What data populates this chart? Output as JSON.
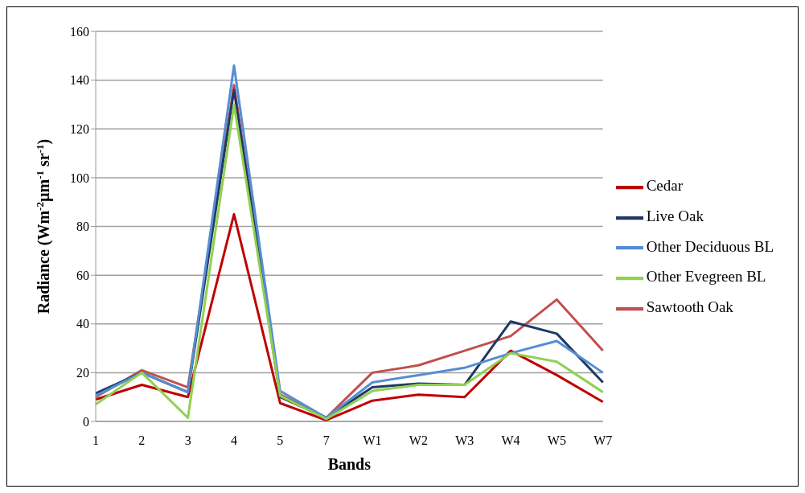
{
  "chart_data": {
    "type": "line",
    "xlabel": "Bands",
    "ylabel": "Radiance (Wm$^{-2}$µm$^{-1}$ sr$^{-1}$)",
    "categories": [
      "1",
      "2",
      "3",
      "4",
      "5",
      "7",
      "W1",
      "W2",
      "W3",
      "W4",
      "W5",
      "W7"
    ],
    "series": [
      {
        "name": "Cedar",
        "color": "#c00000",
        "values": [
          9,
          15,
          10,
          85,
          7.5,
          0.5,
          8.5,
          11,
          10,
          29,
          19,
          8
        ]
      },
      {
        "name": "Sawtooth Oak",
        "color": "#c0504d",
        "values": [
          10,
          21,
          14,
          138,
          11,
          1.5,
          20,
          23,
          29,
          35,
          50,
          29
        ]
      },
      {
        "name": "Live Oak",
        "color": "#1f3864",
        "values": [
          11.5,
          20,
          12,
          136,
          10,
          1.5,
          14,
          15.5,
          15,
          41,
          36,
          16
        ]
      },
      {
        "name": "Other Deciduous BL",
        "color": "#558ed5",
        "values": [
          10.5,
          20,
          12,
          146,
          12.5,
          1.5,
          16,
          19,
          22,
          28,
          33,
          20
        ]
      },
      {
        "name": "Other Evegreen BL",
        "color": "#92d050",
        "values": [
          7,
          20,
          1.5,
          130,
          10.5,
          1,
          12.5,
          15,
          15,
          28,
          24.5,
          12
        ]
      }
    ],
    "ylim": [
      0,
      160
    ],
    "yticks": [
      0,
      20,
      40,
      60,
      80,
      100,
      120,
      140,
      160
    ],
    "grid": "y",
    "legend": "right",
    "marker": "none",
    "line_style": "solid"
  }
}
